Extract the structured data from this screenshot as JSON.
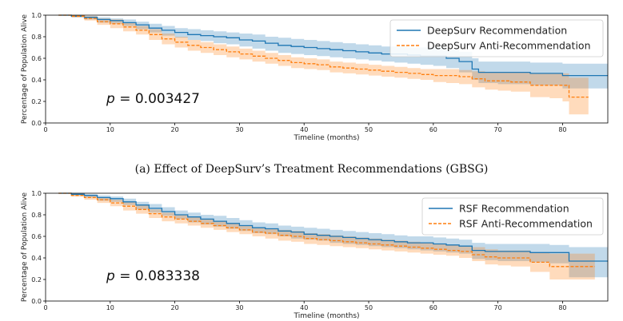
{
  "chart_data": [
    {
      "type": "line",
      "xlabel": "Timeline (months)",
      "ylabel": "Percentage of Population Alive",
      "xlim": [
        0,
        87
      ],
      "ylim": [
        0.0,
        1.0
      ],
      "xticks": [
        "0",
        "10",
        "20",
        "30",
        "40",
        "50",
        "60",
        "70",
        "80"
      ],
      "yticks": [
        "0.0",
        "0.2",
        "0.4",
        "0.6",
        "0.8",
        "1.0"
      ],
      "legend_position": "top-right",
      "annotation": "p = 0.003427",
      "series": [
        {
          "name": "DeepSurv Recommendation",
          "color": "#1f77b4",
          "style": "solid",
          "x": [
            2,
            4,
            6,
            8,
            10,
            12,
            14,
            16,
            18,
            20,
            22,
            24,
            26,
            28,
            30,
            32,
            34,
            36,
            38,
            40,
            42,
            44,
            46,
            48,
            50,
            52,
            54,
            56,
            58,
            60,
            62,
            64,
            66,
            67,
            70,
            75,
            80,
            87
          ],
          "y": [
            1.0,
            0.99,
            0.98,
            0.96,
            0.95,
            0.93,
            0.91,
            0.88,
            0.86,
            0.84,
            0.82,
            0.81,
            0.8,
            0.79,
            0.77,
            0.76,
            0.74,
            0.72,
            0.71,
            0.7,
            0.69,
            0.68,
            0.67,
            0.66,
            0.65,
            0.64,
            0.64,
            0.63,
            0.62,
            0.62,
            0.6,
            0.57,
            0.5,
            0.47,
            0.47,
            0.46,
            0.44,
            0.44
          ],
          "lower": [
            1.0,
            0.98,
            0.96,
            0.93,
            0.92,
            0.9,
            0.87,
            0.84,
            0.81,
            0.79,
            0.77,
            0.76,
            0.74,
            0.73,
            0.71,
            0.69,
            0.67,
            0.65,
            0.64,
            0.63,
            0.62,
            0.61,
            0.6,
            0.59,
            0.58,
            0.57,
            0.56,
            0.55,
            0.54,
            0.53,
            0.51,
            0.47,
            0.4,
            0.37,
            0.36,
            0.35,
            0.32,
            0.32
          ],
          "upper": [
            1.0,
            1.0,
            0.99,
            0.98,
            0.97,
            0.96,
            0.94,
            0.92,
            0.9,
            0.88,
            0.87,
            0.86,
            0.85,
            0.84,
            0.83,
            0.82,
            0.8,
            0.79,
            0.78,
            0.77,
            0.76,
            0.75,
            0.74,
            0.73,
            0.72,
            0.71,
            0.71,
            0.7,
            0.7,
            0.7,
            0.68,
            0.66,
            0.6,
            0.57,
            0.57,
            0.56,
            0.55,
            0.55
          ]
        },
        {
          "name": "DeepSurv Anti-Recommendation",
          "color": "#ff7f0e",
          "style": "dashed",
          "x": [
            2,
            4,
            6,
            8,
            10,
            12,
            14,
            16,
            18,
            20,
            22,
            24,
            26,
            28,
            30,
            32,
            34,
            36,
            38,
            40,
            42,
            44,
            46,
            48,
            50,
            52,
            54,
            56,
            58,
            60,
            62,
            64,
            66,
            68,
            70,
            72,
            75,
            78,
            80,
            81,
            84
          ],
          "y": [
            1.0,
            0.99,
            0.97,
            0.94,
            0.92,
            0.89,
            0.86,
            0.82,
            0.78,
            0.75,
            0.72,
            0.7,
            0.68,
            0.66,
            0.64,
            0.62,
            0.6,
            0.58,
            0.56,
            0.55,
            0.54,
            0.52,
            0.51,
            0.5,
            0.49,
            0.48,
            0.47,
            0.46,
            0.45,
            0.44,
            0.44,
            0.43,
            0.41,
            0.39,
            0.39,
            0.38,
            0.35,
            0.35,
            0.35,
            0.24,
            0.24
          ],
          "lower": [
            1.0,
            0.98,
            0.95,
            0.91,
            0.88,
            0.85,
            0.82,
            0.77,
            0.73,
            0.7,
            0.67,
            0.65,
            0.63,
            0.61,
            0.59,
            0.57,
            0.55,
            0.53,
            0.51,
            0.5,
            0.49,
            0.47,
            0.46,
            0.45,
            0.44,
            0.43,
            0.42,
            0.41,
            0.4,
            0.38,
            0.37,
            0.36,
            0.33,
            0.31,
            0.3,
            0.29,
            0.24,
            0.23,
            0.2,
            0.08,
            0.08
          ],
          "upper": [
            1.0,
            1.0,
            0.99,
            0.97,
            0.96,
            0.93,
            0.9,
            0.87,
            0.83,
            0.8,
            0.77,
            0.75,
            0.73,
            0.71,
            0.69,
            0.67,
            0.65,
            0.63,
            0.61,
            0.6,
            0.59,
            0.57,
            0.56,
            0.55,
            0.54,
            0.53,
            0.52,
            0.51,
            0.5,
            0.5,
            0.5,
            0.49,
            0.48,
            0.47,
            0.47,
            0.47,
            0.46,
            0.46,
            0.46,
            0.42,
            0.42
          ]
        }
      ]
    },
    {
      "type": "line",
      "xlabel": "Timeline (months)",
      "ylabel": "Percentage of Population Alive",
      "xlim": [
        0,
        87
      ],
      "ylim": [
        0.0,
        1.0
      ],
      "xticks": [
        "0",
        "10",
        "20",
        "30",
        "40",
        "50",
        "60",
        "70",
        "80"
      ],
      "yticks": [
        "0.0",
        "0.2",
        "0.4",
        "0.6",
        "0.8",
        "1.0"
      ],
      "legend_position": "top-right",
      "annotation": "p = 0.083338",
      "series": [
        {
          "name": "RSF Recommendation",
          "color": "#1f77b4",
          "style": "solid",
          "x": [
            2,
            4,
            6,
            8,
            10,
            12,
            14,
            16,
            18,
            20,
            22,
            24,
            26,
            28,
            30,
            32,
            34,
            36,
            38,
            40,
            42,
            44,
            46,
            48,
            50,
            52,
            54,
            56,
            58,
            60,
            62,
            64,
            66,
            68,
            70,
            75,
            78,
            81,
            87
          ],
          "y": [
            1.0,
            0.99,
            0.98,
            0.96,
            0.95,
            0.92,
            0.89,
            0.86,
            0.83,
            0.8,
            0.78,
            0.76,
            0.74,
            0.72,
            0.7,
            0.68,
            0.67,
            0.65,
            0.64,
            0.62,
            0.61,
            0.6,
            0.59,
            0.58,
            0.57,
            0.56,
            0.55,
            0.54,
            0.54,
            0.53,
            0.52,
            0.51,
            0.47,
            0.46,
            0.46,
            0.45,
            0.45,
            0.37,
            0.37
          ],
          "lower": [
            1.0,
            0.98,
            0.96,
            0.93,
            0.92,
            0.89,
            0.85,
            0.82,
            0.79,
            0.76,
            0.73,
            0.71,
            0.69,
            0.67,
            0.65,
            0.63,
            0.62,
            0.6,
            0.58,
            0.57,
            0.56,
            0.54,
            0.53,
            0.52,
            0.51,
            0.5,
            0.49,
            0.48,
            0.47,
            0.46,
            0.45,
            0.44,
            0.39,
            0.38,
            0.37,
            0.36,
            0.35,
            0.22,
            0.22
          ],
          "upper": [
            1.0,
            1.0,
            0.99,
            0.98,
            0.97,
            0.95,
            0.92,
            0.9,
            0.87,
            0.84,
            0.82,
            0.8,
            0.79,
            0.77,
            0.75,
            0.73,
            0.72,
            0.7,
            0.69,
            0.68,
            0.67,
            0.66,
            0.65,
            0.64,
            0.63,
            0.62,
            0.61,
            0.6,
            0.6,
            0.59,
            0.58,
            0.57,
            0.54,
            0.53,
            0.53,
            0.53,
            0.52,
            0.5,
            0.5
          ]
        },
        {
          "name": "RSF Anti-Recommendation",
          "color": "#ff7f0e",
          "style": "dashed",
          "x": [
            2,
            4,
            6,
            8,
            10,
            12,
            14,
            16,
            18,
            20,
            22,
            24,
            26,
            28,
            30,
            32,
            34,
            36,
            38,
            40,
            42,
            44,
            46,
            48,
            50,
            52,
            54,
            56,
            58,
            60,
            62,
            64,
            66,
            68,
            70,
            72,
            75,
            78,
            80,
            85
          ],
          "y": [
            1.0,
            0.98,
            0.96,
            0.94,
            0.91,
            0.88,
            0.85,
            0.81,
            0.78,
            0.76,
            0.74,
            0.72,
            0.7,
            0.68,
            0.66,
            0.64,
            0.63,
            0.61,
            0.6,
            0.58,
            0.57,
            0.56,
            0.55,
            0.54,
            0.53,
            0.52,
            0.51,
            0.5,
            0.49,
            0.48,
            0.47,
            0.46,
            0.43,
            0.41,
            0.4,
            0.4,
            0.36,
            0.32,
            0.32,
            0.32
          ],
          "lower": [
            1.0,
            0.97,
            0.94,
            0.91,
            0.88,
            0.84,
            0.81,
            0.77,
            0.74,
            0.72,
            0.7,
            0.68,
            0.66,
            0.64,
            0.62,
            0.6,
            0.58,
            0.56,
            0.55,
            0.53,
            0.52,
            0.51,
            0.5,
            0.49,
            0.48,
            0.47,
            0.46,
            0.45,
            0.44,
            0.43,
            0.42,
            0.4,
            0.37,
            0.34,
            0.33,
            0.32,
            0.27,
            0.2,
            0.2,
            0.2
          ],
          "upper": [
            1.0,
            0.99,
            0.98,
            0.96,
            0.94,
            0.92,
            0.89,
            0.85,
            0.82,
            0.8,
            0.78,
            0.76,
            0.74,
            0.72,
            0.7,
            0.68,
            0.67,
            0.66,
            0.65,
            0.63,
            0.62,
            0.61,
            0.6,
            0.59,
            0.58,
            0.57,
            0.56,
            0.55,
            0.54,
            0.53,
            0.52,
            0.51,
            0.5,
            0.48,
            0.47,
            0.47,
            0.45,
            0.44,
            0.44,
            0.44
          ]
        }
      ]
    }
  ],
  "captions": [
    "(a) Effect of DeepSurv’s Treatment Recommendations (GBSG)"
  ]
}
